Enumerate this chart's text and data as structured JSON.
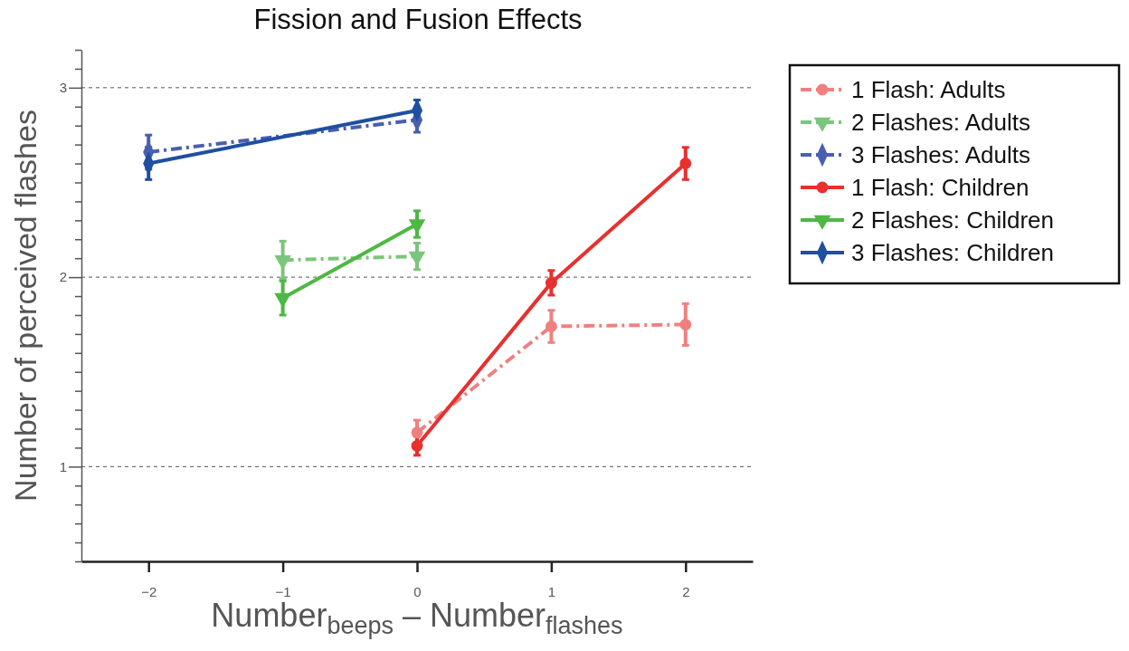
{
  "chart_data": {
    "type": "line",
    "title": "Fission and Fusion Effects",
    "xlabel": "Number$_{beeps}$ – Number$_{flashes}$",
    "ylabel": "Number of perceived flashes",
    "xlim": [
      -2.5,
      2.5
    ],
    "xticks": [
      {
        "value": -2,
        "label": "−2"
      },
      {
        "value": -1,
        "label": "−1"
      },
      0,
      1,
      2
    ],
    "ylim": [
      0.5,
      3.2
    ],
    "yticks": [
      {
        "value": 0.5,
        "label": null
      },
      {
        "value": 0.6,
        "label": null
      },
      {
        "value": 0.7,
        "label": null
      },
      {
        "value": 0.8,
        "label": null
      },
      {
        "value": 0.9,
        "label": null
      },
      1,
      {
        "value": 1.1,
        "label": null
      },
      {
        "value": 1.2,
        "label": null
      },
      {
        "value": 1.3,
        "label": null
      },
      {
        "value": 1.4,
        "label": null
      },
      {
        "value": 1.5,
        "label": null
      },
      {
        "value": 1.6,
        "label": null
      },
      {
        "value": 1.7,
        "label": null
      },
      {
        "value": 1.8,
        "label": null
      },
      {
        "value": 1.9,
        "label": null
      },
      2,
      {
        "value": 2.1,
        "label": null
      },
      {
        "value": 2.2,
        "label": null
      },
      {
        "value": 2.3,
        "label": null
      },
      {
        "value": 2.4,
        "label": null
      },
      {
        "value": 2.5,
        "label": null
      },
      {
        "value": 2.6,
        "label": null
      },
      {
        "value": 2.7,
        "label": null
      },
      {
        "value": 2.8,
        "label": null
      },
      {
        "value": 2.9,
        "label": null
      },
      3,
      {
        "value": 3.1,
        "label": null
      },
      {
        "value": 3.2,
        "label": null
      }
    ],
    "grid": "y",
    "legend": "top right",
    "series": [
      {
        "name": "1 Flash: Adults",
        "color": "#f08080",
        "x": [
          0,
          1,
          2
        ],
        "values": [
          1.18,
          1.74,
          1.75
        ],
        "errors": [
          0.065,
          0.085,
          0.11
        ],
        "marker": "circle",
        "line_style": "dashed"
      },
      {
        "name": "2 Flashes: Adults",
        "color": "#7cc57c",
        "x": [
          -1,
          0
        ],
        "values": [
          2.09,
          2.11
        ],
        "errors": [
          0.1,
          0.07
        ],
        "marker": "triangle",
        "line_style": "dashed"
      },
      {
        "name": "3 Flashes: Adults",
        "color": "#4a5fb0",
        "x": [
          -2,
          0
        ],
        "values": [
          2.66,
          2.83
        ],
        "errors": [
          0.09,
          0.065
        ],
        "marker": "diamond",
        "line_style": "dashed"
      },
      {
        "name": "1 Flash: Children",
        "color": "#e8302e",
        "x": [
          0,
          1,
          2
        ],
        "values": [
          1.11,
          1.97,
          2.6
        ],
        "errors": [
          0.05,
          0.065,
          0.085
        ],
        "marker": "circle",
        "line_style": "solid"
      },
      {
        "name": "2 Flashes: Children",
        "color": "#4db843",
        "x": [
          -1,
          0
        ],
        "values": [
          1.89,
          2.28
        ],
        "errors": [
          0.09,
          0.07
        ],
        "marker": "triangle",
        "line_style": "solid"
      },
      {
        "name": "3 Flashes: Children",
        "color": "#1f4fa0",
        "x": [
          -2,
          0
        ],
        "values": [
          2.6,
          2.88
        ],
        "errors": [
          0.085,
          0.055
        ],
        "marker": "diamond",
        "line_style": "solid"
      }
    ]
  }
}
